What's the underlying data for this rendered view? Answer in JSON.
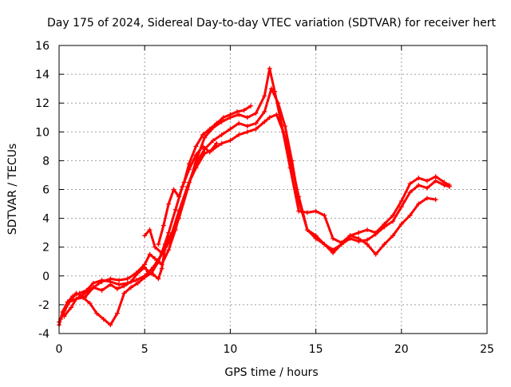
{
  "chart_data": {
    "type": "line",
    "title": "Day 175 of 2024, Sidereal Day-to-day VTEC variation (SDTVAR) for receiver hert",
    "xlabel": "GPS time / hours",
    "ylabel": "SDTVAR / TECUs",
    "xlim": [
      0,
      25
    ],
    "ylim": [
      -4,
      16
    ],
    "xticks": [
      "0",
      "5",
      "10",
      "15",
      "20",
      "25"
    ],
    "yticks": [
      "-4",
      "-2",
      "0",
      "2",
      "4",
      "6",
      "8",
      "10",
      "12",
      "14",
      "16"
    ],
    "grid": true,
    "marker": "plus",
    "color": "#ff0000",
    "series": [
      {
        "x": [
          0.0,
          0.2,
          0.5,
          0.8,
          1.2,
          1.6,
          2.0,
          2.5,
          3.0,
          3.5,
          4.0,
          4.5,
          5.0,
          5.5,
          6.0,
          6.5,
          7.0,
          7.5,
          8.0,
          8.5,
          9.0,
          9.5,
          10.0,
          10.5,
          11.0,
          11.5,
          12.0,
          12.3,
          12.6,
          13.0,
          13.5,
          14.0,
          14.5,
          15.0,
          15.5,
          16.0,
          16.5,
          17.0,
          17.5,
          18.0,
          18.5,
          19.0,
          19.5,
          20.0,
          20.5,
          21.0,
          21.5,
          22.0,
          22.5,
          22.8
        ],
        "y": [
          -3.4,
          -2.5,
          -1.8,
          -1.4,
          -1.2,
          -1.0,
          -0.5,
          -0.3,
          -0.4,
          -0.6,
          -0.5,
          -0.3,
          0.0,
          0.6,
          1.5,
          2.5,
          4.0,
          6.0,
          8.0,
          9.6,
          10.3,
          10.7,
          11.0,
          11.2,
          11.0,
          11.3,
          12.5,
          14.4,
          12.8,
          10.5,
          7.5,
          4.5,
          4.4,
          4.5,
          4.2,
          2.6,
          2.3,
          2.8,
          3.0,
          3.2,
          3.0,
          3.6,
          4.2,
          5.2,
          6.4,
          6.8,
          6.6,
          6.9,
          6.5,
          6.3
        ]
      },
      {
        "x": [
          0.0,
          0.3,
          0.6,
          1.0,
          1.4,
          1.8,
          2.2,
          2.6,
          3.0,
          3.4,
          3.8,
          4.2,
          4.6,
          5.0,
          5.4,
          5.8,
          6.2,
          6.6,
          7.0,
          7.5,
          8.0,
          8.5,
          9.0,
          9.5,
          10.0,
          10.5,
          11.0,
          11.5,
          12.0,
          12.4,
          12.8,
          13.2,
          13.6,
          14.0,
          14.5,
          15.0,
          15.5,
          16.0,
          16.5,
          17.0,
          17.5,
          18.0,
          18.5,
          19.0,
          19.5,
          20.0,
          20.5,
          21.0,
          21.5,
          22.0,
          22.5,
          22.8
        ],
        "y": [
          -3.2,
          -2.4,
          -1.8,
          -1.6,
          -1.5,
          -1.9,
          -2.6,
          -3.0,
          -3.4,
          -2.6,
          -1.2,
          -0.8,
          -0.5,
          -0.1,
          0.2,
          1.0,
          2.2,
          3.0,
          4.5,
          6.2,
          7.8,
          8.8,
          9.4,
          9.8,
          10.2,
          10.6,
          10.4,
          10.6,
          11.4,
          13.0,
          12.0,
          10.4,
          8.0,
          5.2,
          3.2,
          2.6,
          2.2,
          1.8,
          2.2,
          2.6,
          2.4,
          2.5,
          2.9,
          3.4,
          3.8,
          4.8,
          5.8,
          6.3,
          6.1,
          6.6,
          6.3,
          6.2
        ]
      },
      {
        "x": [
          0.3,
          0.7,
          1.0,
          1.5,
          2.0,
          2.5,
          3.0,
          3.5,
          4.0,
          4.5,
          5.0,
          5.3,
          5.6,
          6.0,
          6.4,
          6.8,
          7.2,
          7.6,
          8.0,
          8.5,
          9.0,
          9.5,
          10.0,
          10.5,
          11.0,
          11.5,
          12.0,
          12.3,
          12.7,
          13.1,
          13.5,
          14.0,
          14.5,
          15.0,
          15.5,
          16.0,
          16.5,
          17.0,
          17.5,
          18.0,
          18.5,
          19.0,
          19.5,
          20.0,
          20.5,
          21.0,
          21.5,
          22.0
        ],
        "y": [
          -2.8,
          -2.2,
          -1.6,
          -1.2,
          -0.8,
          -0.4,
          -0.2,
          -0.3,
          -0.2,
          0.2,
          0.8,
          1.5,
          1.2,
          0.8,
          1.8,
          3.2,
          5.0,
          6.5,
          7.5,
          8.5,
          8.8,
          9.2,
          9.4,
          9.8,
          10.0,
          10.2,
          10.7,
          11.0,
          11.2,
          10.0,
          8.2,
          5.5,
          3.2,
          2.8,
          2.2,
          1.6,
          2.2,
          2.8,
          2.6,
          2.2,
          1.5,
          2.2,
          2.8,
          3.6,
          4.2,
          5.0,
          5.4,
          5.3
        ]
      },
      {
        "x": [
          0.1,
          0.5,
          1.0,
          1.5,
          2.0,
          2.5,
          3.0,
          3.4,
          3.8,
          4.2,
          4.6,
          5.0,
          5.2,
          5.5,
          5.8,
          6.0,
          6.2
        ],
        "y": [
          -3.0,
          -2.0,
          -1.2,
          -1.5,
          -0.8,
          -1.0,
          -0.6,
          -0.9,
          -0.7,
          -0.4,
          0.2,
          0.6,
          0.3,
          0.1,
          -0.2,
          0.5,
          2.0
        ]
      },
      {
        "x": [
          5.8,
          6.1,
          6.4,
          6.7,
          7.0,
          7.3,
          7.6,
          8.0,
          8.4,
          8.8,
          9.2,
          9.6,
          10.0,
          10.4,
          10.8,
          11.2
        ],
        "y": [
          2.2,
          3.5,
          5.0,
          6.0,
          5.5,
          6.5,
          7.8,
          9.0,
          9.8,
          10.2,
          10.6,
          11.0,
          11.2,
          11.4,
          11.5,
          11.8
        ]
      },
      {
        "x": [
          5.0,
          5.3,
          5.6,
          6.0,
          6.4,
          6.8,
          7.2,
          7.6,
          8.0,
          8.4,
          8.8,
          9.2
        ],
        "y": [
          2.8,
          3.2,
          2.0,
          1.6,
          3.0,
          4.6,
          6.2,
          7.4,
          8.4,
          9.0,
          8.6,
          9.2
        ]
      }
    ]
  }
}
